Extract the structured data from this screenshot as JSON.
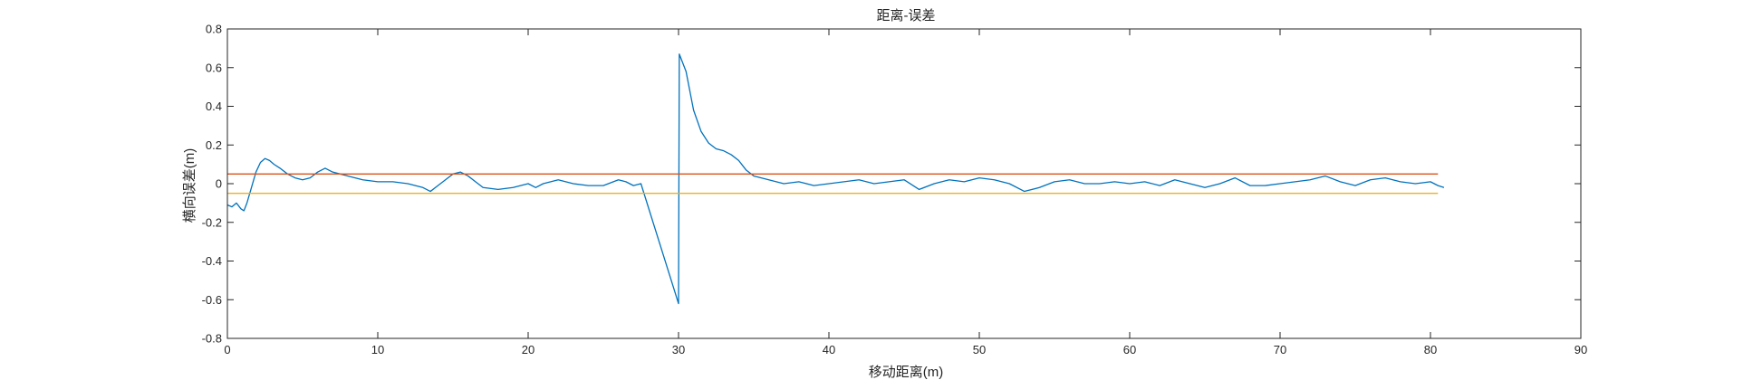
{
  "chart_data": {
    "type": "line",
    "title": "距离-误差",
    "xlabel": "移动距离(m)",
    "ylabel": "横向误差(m)",
    "xlim": [
      0,
      90
    ],
    "ylim": [
      -0.8,
      0.8
    ],
    "x_ticks": [
      0,
      10,
      20,
      30,
      40,
      50,
      60,
      70,
      80,
      90
    ],
    "y_ticks": [
      -0.8,
      -0.6,
      -0.4,
      -0.2,
      0,
      0.2,
      0.4,
      0.6,
      0.8
    ],
    "grid": false,
    "box": true,
    "series": [
      {
        "color": "#0072BD",
        "points": [
          [
            0,
            -0.11
          ],
          [
            0.3,
            -0.12
          ],
          [
            0.6,
            -0.1
          ],
          [
            0.9,
            -0.13
          ],
          [
            1.1,
            -0.14
          ],
          [
            1.3,
            -0.1
          ],
          [
            1.6,
            -0.02
          ],
          [
            1.9,
            0.06
          ],
          [
            2.2,
            0.11
          ],
          [
            2.5,
            0.13
          ],
          [
            2.8,
            0.12
          ],
          [
            3.1,
            0.1
          ],
          [
            3.5,
            0.08
          ],
          [
            4,
            0.05
          ],
          [
            4.5,
            0.03
          ],
          [
            5,
            0.02
          ],
          [
            5.5,
            0.03
          ],
          [
            6,
            0.06
          ],
          [
            6.5,
            0.08
          ],
          [
            7,
            0.06
          ],
          [
            7.5,
            0.05
          ],
          [
            8,
            0.04
          ],
          [
            8.5,
            0.03
          ],
          [
            9,
            0.02
          ],
          [
            10,
            0.01
          ],
          [
            11,
            0.01
          ],
          [
            12,
            0.0
          ],
          [
            13,
            -0.02
          ],
          [
            13.5,
            -0.04
          ],
          [
            14,
            -0.01
          ],
          [
            14.5,
            0.02
          ],
          [
            15,
            0.05
          ],
          [
            15.5,
            0.06
          ],
          [
            16,
            0.04
          ],
          [
            16.5,
            0.01
          ],
          [
            17,
            -0.02
          ],
          [
            18,
            -0.03
          ],
          [
            19,
            -0.02
          ],
          [
            20,
            0.0
          ],
          [
            20.5,
            -0.02
          ],
          [
            21,
            0.0
          ],
          [
            22,
            0.02
          ],
          [
            23,
            0.0
          ],
          [
            24,
            -0.01
          ],
          [
            25,
            -0.01
          ],
          [
            26,
            0.02
          ],
          [
            26.5,
            0.01
          ],
          [
            27,
            -0.01
          ],
          [
            27.5,
            0.0
          ],
          [
            30.0,
            -0.62
          ],
          [
            30.05,
            0.67
          ],
          [
            30.5,
            0.58
          ],
          [
            31,
            0.38
          ],
          [
            31.5,
            0.27
          ],
          [
            32,
            0.21
          ],
          [
            32.5,
            0.18
          ],
          [
            33,
            0.17
          ],
          [
            33.5,
            0.15
          ],
          [
            34,
            0.12
          ],
          [
            34.5,
            0.07
          ],
          [
            35,
            0.04
          ],
          [
            36,
            0.02
          ],
          [
            37,
            0.0
          ],
          [
            38,
            0.01
          ],
          [
            39,
            -0.01
          ],
          [
            40,
            0.0
          ],
          [
            41,
            0.01
          ],
          [
            42,
            0.02
          ],
          [
            43,
            0.0
          ],
          [
            44,
            0.01
          ],
          [
            45,
            0.02
          ],
          [
            46,
            -0.03
          ],
          [
            47,
            0.0
          ],
          [
            48,
            0.02
          ],
          [
            49,
            0.01
          ],
          [
            50,
            0.03
          ],
          [
            51,
            0.02
          ],
          [
            52,
            0.0
          ],
          [
            53,
            -0.04
          ],
          [
            54,
            -0.02
          ],
          [
            55,
            0.01
          ],
          [
            56,
            0.02
          ],
          [
            57,
            0.0
          ],
          [
            58,
            0.0
          ],
          [
            59,
            0.01
          ],
          [
            60,
            0.0
          ],
          [
            61,
            0.01
          ],
          [
            62,
            -0.01
          ],
          [
            63,
            0.02
          ],
          [
            64,
            0.0
          ],
          [
            65,
            -0.02
          ],
          [
            66,
            0.0
          ],
          [
            67,
            0.03
          ],
          [
            68,
            -0.01
          ],
          [
            69,
            -0.01
          ],
          [
            70,
            0.0
          ],
          [
            71,
            0.01
          ],
          [
            72,
            0.02
          ],
          [
            73,
            0.04
          ],
          [
            74,
            0.01
          ],
          [
            75,
            -0.01
          ],
          [
            76,
            0.02
          ],
          [
            77,
            0.03
          ],
          [
            78,
            0.01
          ],
          [
            79,
            0.0
          ],
          [
            80,
            0.01
          ],
          [
            80.5,
            -0.01
          ],
          [
            80.9,
            -0.02
          ]
        ]
      },
      {
        "color": "#D95319",
        "points": [
          [
            0,
            0.05
          ],
          [
            80.5,
            0.05
          ]
        ]
      },
      {
        "color": "#EDB120",
        "points": [
          [
            0,
            -0.05
          ],
          [
            80.5,
            -0.05
          ]
        ]
      }
    ]
  }
}
